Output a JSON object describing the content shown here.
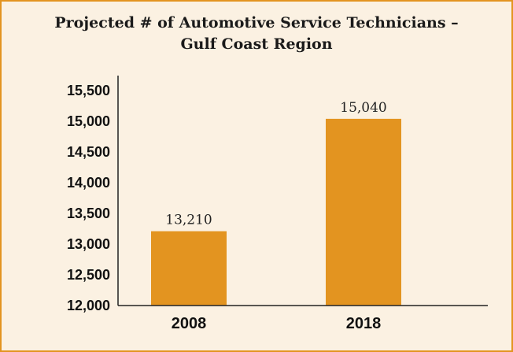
{
  "chart_data": {
    "type": "bar",
    "title": "Projected # of Automotive Service Technicians –\nGulf Coast Region",
    "xlabel": "",
    "ylabel": "",
    "categories": [
      "2008",
      "2018"
    ],
    "values": [
      13210,
      15040
    ],
    "data_labels": [
      "13,210",
      "15,040"
    ],
    "ylim": [
      12000,
      15500
    ],
    "yticks": [
      12000,
      12500,
      13000,
      13500,
      14000,
      14500,
      15000,
      15500
    ],
    "ytick_labels": [
      "12,000",
      "12,500",
      "13,000",
      "13,500",
      "14,000",
      "14,500",
      "15,000",
      "15,500"
    ],
    "grid": false,
    "legend": "none",
    "colors": {
      "bar": "#e39420",
      "background": "#fbf1e2",
      "border": "#e39420",
      "axis": "#222222"
    }
  }
}
